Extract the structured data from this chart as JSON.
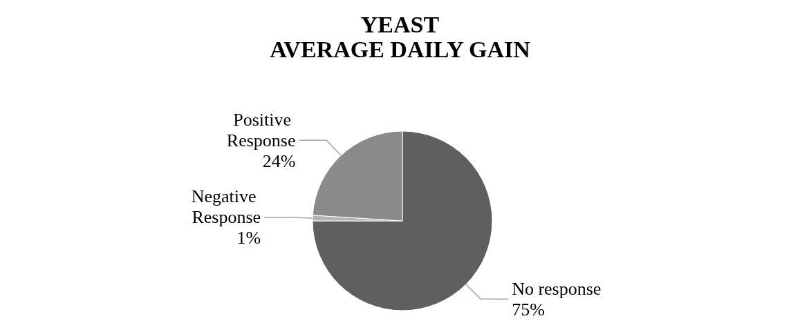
{
  "chart_data": {
    "type": "pie",
    "title": "YEAST\nAVERAGE DAILY GAIN",
    "categories": [
      "No response",
      "Negative Response",
      "Positive Response"
    ],
    "values": [
      75,
      1,
      24
    ],
    "value_labels": [
      "75%",
      "1%",
      "24%"
    ],
    "colors": [
      "#5f5f5f",
      "#b4b4b4",
      "#8a8a8a"
    ],
    "legend": false
  }
}
